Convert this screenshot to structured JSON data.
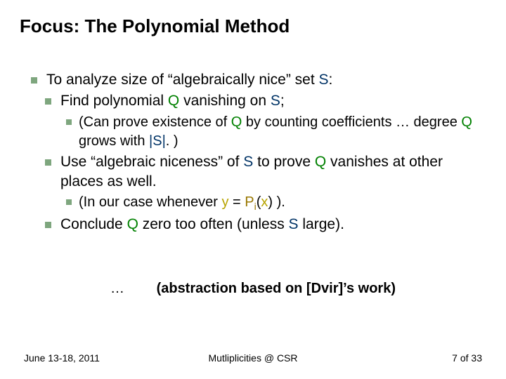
{
  "title": "Focus: The Polynomial Method",
  "colors": {
    "navy": "#003366",
    "green": "#008000",
    "yellow": "#b8a400",
    "gold": "#997700",
    "bullet": "#7ea67e",
    "text": "#000000",
    "background": "#ffffff"
  },
  "typography": {
    "family": "Verdana",
    "title_size_pt": 26,
    "body_size_pt": 21,
    "sub_body_size_pt": 20,
    "footer_size_pt": 14,
    "title_weight": "bold"
  },
  "l1": {
    "pre": "To analyze size of “algebraically nice” set ",
    "S": "S",
    "post": ":"
  },
  "l2a": {
    "pre": "Find polynomial ",
    "Q": "Q",
    "mid": " vanishing on ",
    "S": "S",
    "post": ";"
  },
  "l3a": {
    "pre": "(Can prove existence of ",
    "Q": "Q",
    "mid1": " by counting coefficients … degree ",
    "Q2": "Q",
    "mid2": " grows with ",
    "Sabs": "|S|",
    "post": ". )"
  },
  "l2b": {
    "pre": "Use “algebraic niceness” of ",
    "S": "S",
    "mid": " to prove ",
    "Q": "Q",
    "post": " vanishes at other places as well."
  },
  "l3b": {
    "pre": "(In our case whenever ",
    "y": "y",
    "eq": " = ",
    "P": "P",
    "i": "i",
    "open": "(",
    "x": "x",
    "close": ") ).",
    "post": ""
  },
  "l2c": {
    "pre": "Conclude ",
    "Q": "Q",
    "mid": " zero too often (unless ",
    "S": "S",
    "post": " large)."
  },
  "abstraction": {
    "ellipsis": "…",
    "text": "(abstraction based on [Dvir]’s work)"
  },
  "footer": {
    "date": "June 13-18, 2011",
    "center": "Mutliplicities @ CSR",
    "page": "7 of 33"
  }
}
